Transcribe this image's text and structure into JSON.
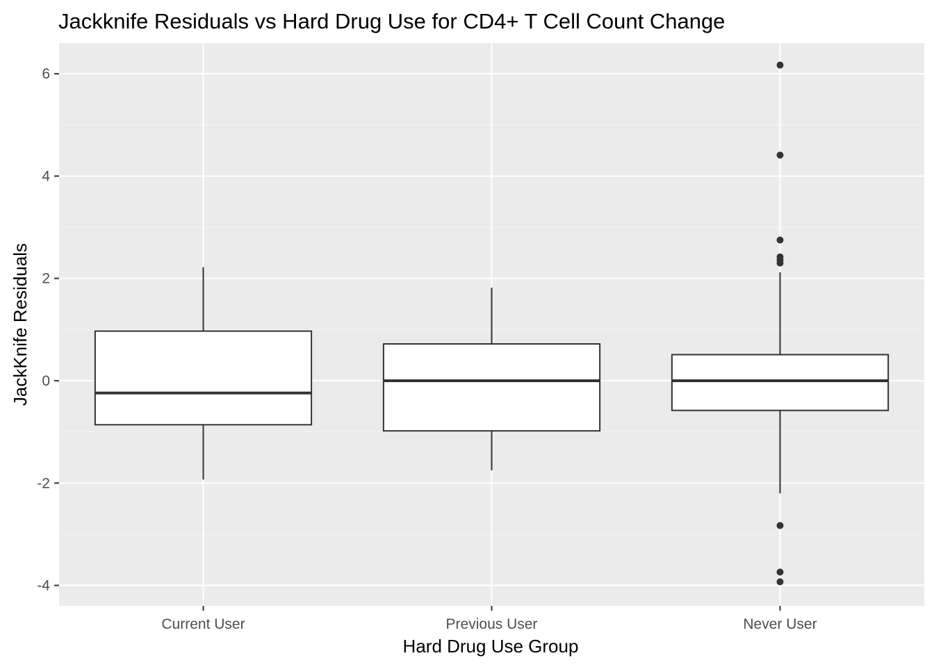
{
  "chart_data": {
    "type": "boxplot",
    "title": "Jackknife Residuals vs Hard Drug Use for CD4+ T Cell Count Change",
    "xlabel": "Hard Drug Use Group",
    "ylabel": "JackKnife Residuals",
    "categories": [
      "Current User",
      "Previous User",
      "Never User"
    ],
    "ylim": [
      -4.4,
      6.6
    ],
    "yticks": [
      -4,
      -2,
      0,
      2,
      4,
      6
    ],
    "ytick_labels": [
      "-4",
      "-2",
      "0",
      "2",
      "4",
      "6"
    ],
    "grid": true,
    "legend": "none",
    "boxes": [
      {
        "category": "Current User",
        "min": -1.93,
        "q1": -0.86,
        "median": -0.24,
        "q3": 0.97,
        "max": 2.22,
        "outliers": []
      },
      {
        "category": "Previous User",
        "min": -1.75,
        "q1": -0.98,
        "median": 0.0,
        "q3": 0.72,
        "max": 1.82,
        "outliers": []
      },
      {
        "category": "Never User",
        "min": -2.2,
        "q1": -0.58,
        "median": 0.0,
        "q3": 0.51,
        "max": 2.12,
        "outliers": [
          6.17,
          4.41,
          2.75,
          2.42,
          2.36,
          2.3,
          -2.83,
          -3.74,
          -3.93
        ]
      }
    ],
    "colors": {
      "panel_background": "#ebebeb",
      "grid_major": "#ffffff",
      "grid_minor": "#f5f5f5",
      "box_fill": "#ffffff",
      "box_line": "#333333",
      "tick_text": "#4d4d4d"
    }
  }
}
